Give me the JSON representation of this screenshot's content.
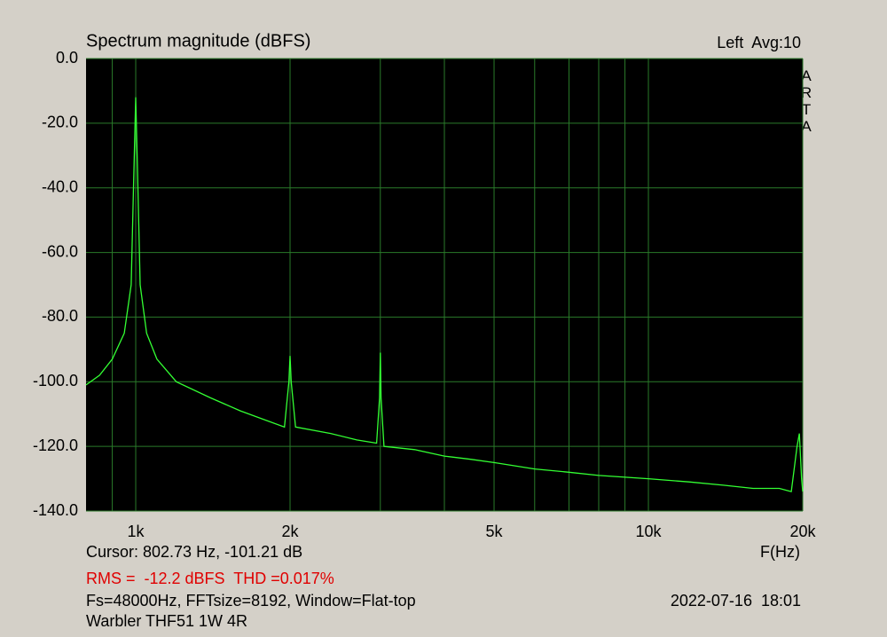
{
  "chart_data": {
    "type": "line",
    "title": "Spectrum magnitude (dBFS)",
    "channel_info": "Left  Avg:10",
    "brand": "ARTA",
    "x_label": "F(Hz)",
    "cursor_info": "Cursor: 802.73 Hz, -101.21 dB",
    "measurement": "RMS =  -12.2 dBFS  THD =0.017%",
    "settings_info": "Fs=48000Hz, FFTsize=8192, Window=Flat-top",
    "timestamp": "2022-07-16  18:01",
    "device": "Warbler THF51 1W 4R",
    "x_scale": "log",
    "xlim": [
      800,
      20000
    ],
    "xticks": [
      {
        "value": 1000,
        "label": "1k"
      },
      {
        "value": 2000,
        "label": "2k"
      },
      {
        "value": 5000,
        "label": "5k"
      },
      {
        "value": 10000,
        "label": "10k"
      },
      {
        "value": 20000,
        "label": "20k"
      }
    ],
    "x_minor_grid": [
      900,
      3000,
      4000,
      6000,
      7000,
      8000,
      9000
    ],
    "ylim": [
      -140,
      0
    ],
    "yticks": [
      {
        "value": 0,
        "label": "0.0"
      },
      {
        "value": -20,
        "label": "-20.0"
      },
      {
        "value": -40,
        "label": "-40.0"
      },
      {
        "value": -60,
        "label": "-60.0"
      },
      {
        "value": -80,
        "label": "-80.0"
      },
      {
        "value": -100,
        "label": "-100.0"
      },
      {
        "value": -120,
        "label": "-120.0"
      },
      {
        "value": -140,
        "label": "-140.0"
      }
    ],
    "grid": true,
    "color": "#33ff33",
    "x": [
      800,
      850,
      900,
      950,
      980,
      990,
      1000,
      1010,
      1020,
      1050,
      1100,
      1200,
      1400,
      1600,
      1800,
      1950,
      1990,
      2000,
      2010,
      2050,
      2400,
      2700,
      2950,
      2990,
      3000,
      3010,
      3050,
      3500,
      4000,
      4500,
      5000,
      6000,
      7000,
      8000,
      10000,
      12000,
      14000,
      16000,
      18000,
      19000,
      19500,
      19700,
      19900,
      20000
    ],
    "values": [
      -101,
      -98,
      -93,
      -85,
      -70,
      -40,
      -12,
      -40,
      -70,
      -85,
      -93,
      -100,
      -105,
      -109,
      -112,
      -114,
      -100,
      -92,
      -100,
      -114,
      -116,
      -118,
      -119,
      -105,
      -91,
      -105,
      -120,
      -121,
      -123,
      -124,
      -125,
      -127,
      -128,
      -129,
      -130,
      -131,
      -132,
      -133,
      -133,
      -134,
      -120,
      -116,
      -130,
      -134
    ]
  }
}
